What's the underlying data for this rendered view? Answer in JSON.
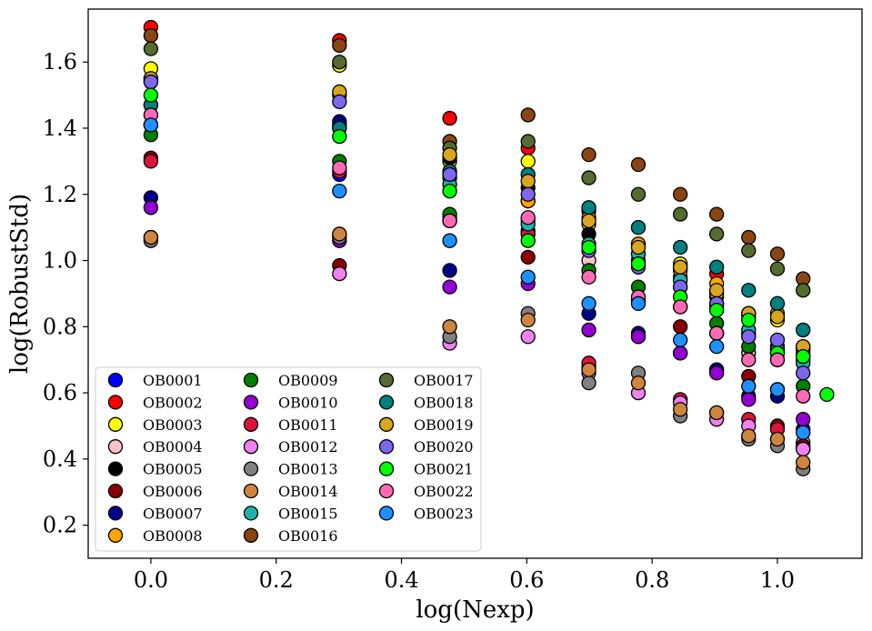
{
  "chart_data": {
    "type": "scatter",
    "xlabel": "log(Nexp)",
    "ylabel": "log(RobustStd)",
    "xlim": [
      -0.1,
      1.135
    ],
    "ylim": [
      0.1,
      1.76
    ],
    "xticks": [
      "0.0",
      "0.2",
      "0.4",
      "0.6",
      "0.8",
      "1.0"
    ],
    "yticks": [
      "0.2",
      "0.4",
      "0.6",
      "0.8",
      "1.0",
      "1.2",
      "1.4",
      "1.6"
    ],
    "grid": false,
    "legend_position": "lower-left",
    "x": [
      0.0,
      0.301,
      0.477,
      0.602,
      0.699,
      0.778,
      0.845,
      0.903,
      0.954,
      1.0,
      1.041
    ],
    "series": [
      {
        "name": "OB0001",
        "color": "#0000ff",
        "values": [
          1.41,
          1.26,
          1.21,
          1.09,
          1.03,
          1.0,
          0.95,
          0.89,
          0.77,
          0.72,
          0.7
        ]
      },
      {
        "name": "OB0002",
        "color": "#ff0000",
        "values": [
          1.705,
          1.665,
          1.43,
          1.34,
          1.15,
          1.1,
          0.98,
          0.96,
          0.84,
          0.74,
          0.72
        ]
      },
      {
        "name": "OB0003",
        "color": "#ffff00",
        "values": [
          1.58,
          1.59,
          1.3,
          1.3,
          1.11,
          1.05,
          0.99,
          0.9,
          0.83,
          0.82,
          0.73
        ]
      },
      {
        "name": "OB0004",
        "color": "#ffc0cb",
        "values": [
          1.07,
          1.08,
          1.12,
          1.12,
          1.0,
          0.88,
          0.86,
          0.78,
          0.72,
          0.7,
          0.45
        ]
      },
      {
        "name": "OB0005",
        "color": "#000000",
        "values": [
          1.41,
          1.41,
          1.31,
          1.22,
          1.08,
          1.02,
          0.92,
          0.86,
          0.78,
          0.73,
          0.71
        ]
      },
      {
        "name": "OB0006",
        "color": "#8b0000",
        "values": [
          1.31,
          0.985,
          1.13,
          1.01,
          0.68,
          0.77,
          0.8,
          0.67,
          0.65,
          0.5,
          0.44
        ]
      },
      {
        "name": "OB0007",
        "color": "#00008b",
        "values": [
          1.19,
          1.42,
          0.97,
          1.18,
          0.84,
          0.78,
          0.72,
          0.67,
          0.59,
          0.59,
          0.49
        ]
      },
      {
        "name": "OB0008",
        "color": "#ffa500",
        "values": [
          1.55,
          1.5,
          1.25,
          1.18,
          1.13,
          1.05,
          0.97,
          0.93,
          0.84,
          0.84,
          0.74
        ]
      },
      {
        "name": "OB0009",
        "color": "#008000",
        "values": [
          1.38,
          1.3,
          1.14,
          1.08,
          0.97,
          0.92,
          0.86,
          0.81,
          0.74,
          0.72,
          0.62
        ]
      },
      {
        "name": "OB0010",
        "color": "#9400d3",
        "values": [
          1.16,
          1.06,
          0.92,
          0.93,
          0.79,
          0.77,
          0.72,
          0.66,
          0.58,
          0.61,
          0.52
        ]
      },
      {
        "name": "OB0011",
        "color": "#dc143c",
        "values": [
          1.3,
          1.27,
          1.12,
          1.08,
          0.69,
          0.88,
          0.58,
          0.78,
          0.52,
          0.49,
          0.43
        ]
      },
      {
        "name": "OB0012",
        "color": "#ee82ee",
        "values": [
          1.54,
          0.96,
          0.75,
          0.77,
          0.66,
          0.6,
          0.57,
          0.52,
          0.5,
          0.46,
          0.43
        ]
      },
      {
        "name": "OB0013",
        "color": "#808080",
        "values": [
          1.06,
          1.07,
          0.77,
          0.84,
          0.63,
          0.66,
          0.53,
          0.54,
          0.46,
          0.44,
          0.37
        ]
      },
      {
        "name": "OB0014",
        "color": "#cd853f",
        "values": [
          1.07,
          1.08,
          0.8,
          0.82,
          0.67,
          0.63,
          0.55,
          0.54,
          0.47,
          0.46,
          0.39
        ]
      },
      {
        "name": "OB0015",
        "color": "#20b2aa",
        "values": [
          1.47,
          1.4,
          1.23,
          1.11,
          1.05,
          1.02,
          0.94,
          0.87,
          0.79,
          0.73,
          0.69
        ]
      },
      {
        "name": "OB0016",
        "color": "#8b4513",
        "values": [
          1.68,
          1.65,
          1.36,
          1.44,
          1.32,
          1.29,
          1.2,
          1.14,
          1.07,
          1.02,
          0.945
        ]
      },
      {
        "name": "OB0017",
        "color": "#556b2f",
        "values": [
          1.64,
          1.6,
          1.34,
          1.36,
          1.25,
          1.2,
          1.14,
          1.08,
          1.03,
          0.975,
          0.91
        ]
      },
      {
        "name": "OB0018",
        "color": "#008080",
        "values": [
          1.47,
          1.4,
          1.27,
          1.26,
          1.16,
          1.1,
          1.04,
          0.98,
          0.91,
          0.87,
          0.79
        ]
      },
      {
        "name": "OB0019",
        "color": "#daa520",
        "values": [
          1.55,
          1.51,
          1.32,
          1.24,
          1.12,
          1.04,
          0.98,
          0.91,
          0.84,
          0.83,
          0.74
        ]
      },
      {
        "name": "OB0020",
        "color": "#7b68ee",
        "values": [
          1.54,
          1.48,
          1.26,
          1.2,
          1.03,
          0.98,
          0.92,
          0.87,
          0.77,
          0.76,
          0.66
        ]
      },
      {
        "name": "OB0021",
        "color": "#00ff00",
        "values": [
          1.5,
          1.375,
          1.21,
          1.06,
          1.04,
          0.99,
          0.89,
          0.85,
          0.82,
          0.72,
          0.71
        ]
      },
      {
        "name": "OB0022",
        "color": "#ff69b4",
        "values": [
          1.44,
          1.28,
          1.12,
          1.13,
          0.95,
          0.89,
          0.86,
          0.78,
          0.7,
          0.7,
          0.59
        ]
      },
      {
        "name": "OB0023",
        "color": "#1e90ff",
        "values": [
          1.41,
          1.21,
          1.06,
          0.95,
          0.87,
          0.87,
          0.76,
          0.74,
          0.62,
          0.61,
          0.48
        ]
      }
    ],
    "extra_points": [
      {
        "series": "OB0021",
        "x": 1.079,
        "y": 0.595
      }
    ]
  }
}
